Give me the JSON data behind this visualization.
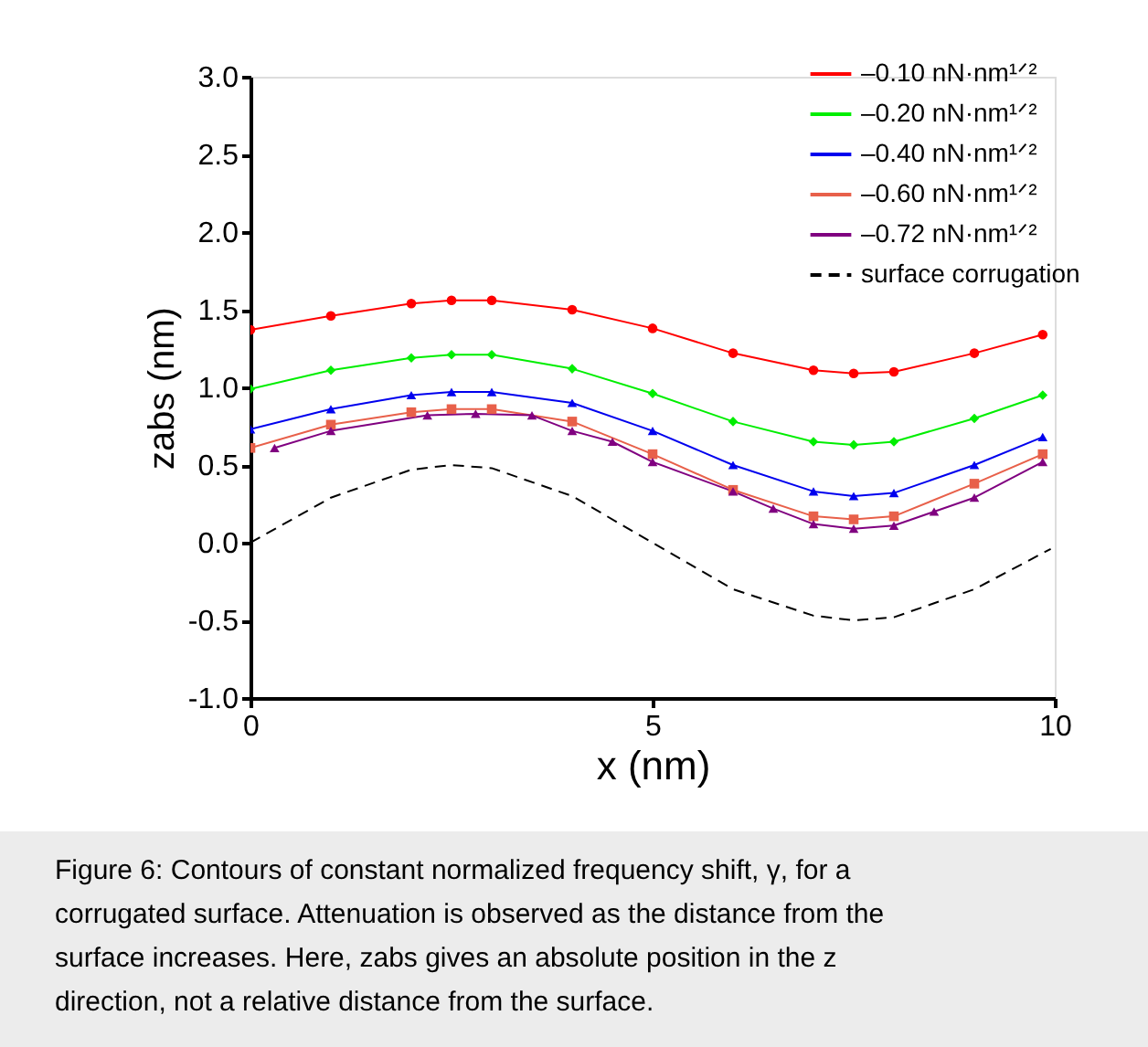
{
  "chart_data": {
    "type": "line",
    "xlabel": "x (nm)",
    "ylabel": "zabs (nm)",
    "xlim": [
      0,
      10
    ],
    "ylim": [
      -1.0,
      3.0
    ],
    "xticks": [
      0,
      5,
      10
    ],
    "yticks": [
      {
        "value": -1.0,
        "label": "-1.0"
      },
      {
        "value": -0.5,
        "label": "-0.5"
      },
      {
        "value": 0,
        "label": "0.0"
      },
      {
        "value": 0.5,
        "label": "0.5"
      },
      {
        "value": 1.0,
        "label": "1.0"
      },
      {
        "value": 1.5,
        "label": "1.5"
      },
      {
        "value": 2.0,
        "label": "2.0"
      },
      {
        "value": 2.5,
        "label": "2.5"
      },
      {
        "value": 3.0,
        "label": "3.0"
      }
    ],
    "grid": false,
    "legend": "top right",
    "series": [
      {
        "name": "–0.10 nN·nm¹ᐟ²",
        "color": "#ff0000",
        "marker": "circle",
        "line_style": "solid",
        "x": [
          0,
          1,
          2,
          2.5,
          3,
          4,
          5,
          6,
          7,
          7.5,
          8,
          9,
          9.85
        ],
        "values": [
          1.37,
          1.46,
          1.54,
          1.56,
          1.56,
          1.5,
          1.38,
          1.22,
          1.11,
          1.09,
          1.1,
          1.22,
          1.34
        ]
      },
      {
        "name": "–0.20 nN·nm¹ᐟ²",
        "color": "#00ee00",
        "marker": "diamond",
        "line_style": "solid",
        "x": [
          0,
          1,
          2,
          2.5,
          3,
          4,
          5,
          6,
          7,
          7.5,
          8,
          9,
          9.85
        ],
        "values": [
          0.99,
          1.11,
          1.19,
          1.21,
          1.21,
          1.12,
          0.96,
          0.78,
          0.65,
          0.63,
          0.65,
          0.8,
          0.95
        ]
      },
      {
        "name": "–0.40 nN·nm¹ᐟ²",
        "color": "#0000ee",
        "marker": "triangle",
        "line_style": "solid",
        "x": [
          0,
          1,
          2,
          2.5,
          3,
          4,
          5,
          6,
          7,
          7.5,
          8,
          9,
          9.85
        ],
        "values": [
          0.73,
          0.86,
          0.95,
          0.97,
          0.97,
          0.9,
          0.72,
          0.5,
          0.33,
          0.3,
          0.32,
          0.5,
          0.68
        ]
      },
      {
        "name": "–0.60 nN·nm¹ᐟ²",
        "color": "#e8604a",
        "marker": "square",
        "line_style": "solid",
        "x": [
          0,
          1,
          2,
          2.5,
          3,
          4,
          5,
          6,
          7,
          7.5,
          8,
          9,
          9.85
        ],
        "values": [
          0.61,
          0.76,
          0.84,
          0.86,
          0.86,
          0.78,
          0.57,
          0.34,
          0.17,
          0.15,
          0.17,
          0.38,
          0.57
        ]
      },
      {
        "name": "–0.72 nN·nm¹ᐟ²",
        "color": "#800080",
        "marker": "triangle",
        "line_style": "solid",
        "x": [
          0.3,
          1,
          2.2,
          2.8,
          3.5,
          4,
          4.5,
          5,
          6,
          6.5,
          7,
          7.5,
          8,
          8.5,
          9,
          9.85
        ],
        "values": [
          0.61,
          0.72,
          0.82,
          0.83,
          0.82,
          0.72,
          0.65,
          0.52,
          0.33,
          0.22,
          0.12,
          0.09,
          0.11,
          0.2,
          0.29,
          0.52
        ]
      },
      {
        "name": "surface corrugation",
        "color": "#000000",
        "marker": "none",
        "line_style": "dashed",
        "x": [
          0,
          1,
          2,
          2.5,
          3,
          4,
          5,
          6,
          7,
          7.5,
          8,
          9,
          9.95
        ],
        "values": [
          0,
          0.29,
          0.47,
          0.5,
          0.48,
          0.3,
          0,
          -0.3,
          -0.47,
          -0.5,
          -0.48,
          -0.3,
          -0.04
        ]
      }
    ],
    "annotations": [
      "Figure 6: Contours of constant normalized frequency shift, γ, for a corrugated surface. Attenuation is observed as the distance from the surface increases. Here, zabs gives an absolute position in the z direction, not a relative distance from the surface."
    ]
  }
}
